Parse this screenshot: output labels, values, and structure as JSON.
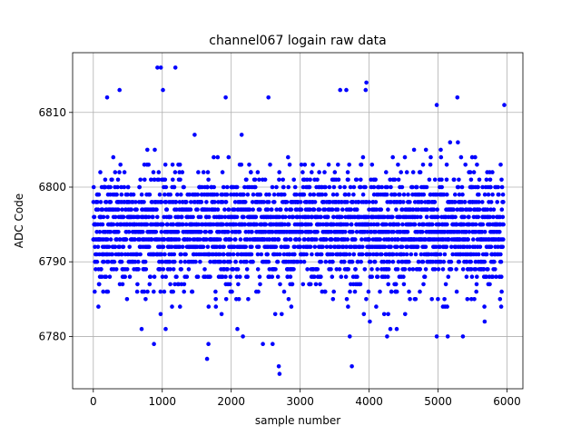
{
  "chart_data": {
    "type": "scatter",
    "title": "channel067 logain raw data",
    "xlabel": "sample number",
    "ylabel": "ADC Code",
    "xlim": [
      -300,
      6230
    ],
    "ylim": [
      6773,
      6818
    ],
    "xticks": [
      0,
      1000,
      2000,
      3000,
      4000,
      5000,
      6000
    ],
    "yticks": [
      6780,
      6790,
      6800,
      6810
    ],
    "xtick_labels": [
      "0",
      "1000",
      "2000",
      "3000",
      "4000",
      "5000",
      "6000"
    ],
    "ytick_labels": [
      "6780",
      "6790",
      "6800",
      "6810"
    ],
    "grid": true,
    "legend": "none",
    "marker_color": "#0000ff",
    "n_samples": 5950,
    "core_range": [
      6792,
      6797
    ],
    "typical_range": [
      6785,
      6805
    ],
    "notable_points": [
      {
        "x": 930,
        "y": 6816
      },
      {
        "x": 980,
        "y": 6816
      },
      {
        "x": 1190,
        "y": 6816
      },
      {
        "x": 1010,
        "y": 6813
      },
      {
        "x": 3960,
        "y": 6814
      },
      {
        "x": 3950,
        "y": 6813
      },
      {
        "x": 3580,
        "y": 6813
      },
      {
        "x": 3670,
        "y": 6813
      },
      {
        "x": 380,
        "y": 6813
      },
      {
        "x": 2540,
        "y": 6812
      },
      {
        "x": 5280,
        "y": 6812
      },
      {
        "x": 200,
        "y": 6812
      },
      {
        "x": 1920,
        "y": 6812
      },
      {
        "x": 4980,
        "y": 6811
      },
      {
        "x": 5960,
        "y": 6811
      },
      {
        "x": 880,
        "y": 6779
      },
      {
        "x": 1650,
        "y": 6777
      },
      {
        "x": 1670,
        "y": 6779
      },
      {
        "x": 2690,
        "y": 6776
      },
      {
        "x": 2700,
        "y": 6775
      },
      {
        "x": 3750,
        "y": 6776
      },
      {
        "x": 3720,
        "y": 6780
      },
      {
        "x": 2170,
        "y": 6780
      },
      {
        "x": 2460,
        "y": 6779
      },
      {
        "x": 2600,
        "y": 6779
      },
      {
        "x": 4260,
        "y": 6780
      },
      {
        "x": 4980,
        "y": 6780
      },
      {
        "x": 5140,
        "y": 6780
      },
      {
        "x": 5360,
        "y": 6780
      },
      {
        "x": 4400,
        "y": 6781
      }
    ]
  }
}
